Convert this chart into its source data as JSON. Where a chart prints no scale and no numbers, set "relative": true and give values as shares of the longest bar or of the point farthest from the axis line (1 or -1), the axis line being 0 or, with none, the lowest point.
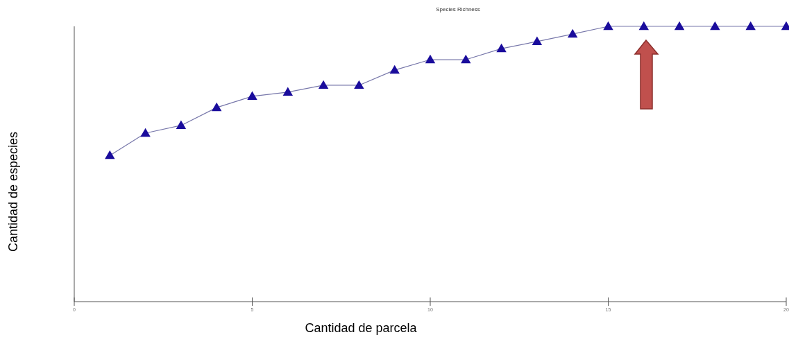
{
  "chart_data": {
    "type": "line",
    "title": "Species Richness",
    "xlabel": "Cantidad de parcela",
    "ylabel": "Cantidad de especies",
    "relative": true,
    "x": [
      1,
      2,
      3,
      4,
      5,
      6,
      7,
      8,
      9,
      10,
      11,
      12,
      13,
      14,
      15,
      16,
      17,
      18,
      19,
      20
    ],
    "xlim": [
      0,
      20
    ],
    "xticks": [
      0,
      5,
      10,
      15,
      20
    ],
    "marker": "triangle",
    "line_style": "solid",
    "series": [
      {
        "color": "#1a0c9c",
        "values": [
          0.531,
          0.612,
          0.64,
          0.705,
          0.746,
          0.761,
          0.786,
          0.786,
          0.841,
          0.879,
          0.879,
          0.919,
          0.945,
          0.972,
          1,
          1,
          1,
          1,
          1,
          1
        ]
      }
    ]
  }
}
